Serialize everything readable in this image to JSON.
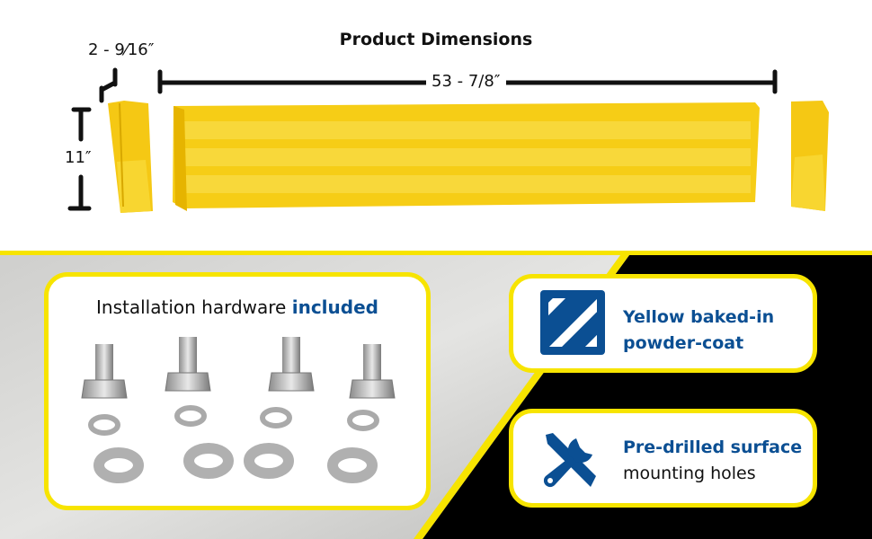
{
  "dimensions": {
    "title": "Product Dimensions",
    "length": "53 - 7/8″",
    "depth": "2 - 9⁄16″",
    "height": "11″"
  },
  "hardware": {
    "text": "Installation hardware",
    "highlight": "included"
  },
  "features": [
    {
      "icon": "striped-square-icon",
      "line1": "Yellow baked-in",
      "line2": "powder-coat"
    },
    {
      "icon": "tools-icon",
      "line1": "Pre-drilled surface",
      "line2": "mounting holes"
    }
  ],
  "colors": {
    "accent": "#f7e400",
    "brand_blue": "#0b4f93",
    "product_yellow": "#f5cc10"
  }
}
